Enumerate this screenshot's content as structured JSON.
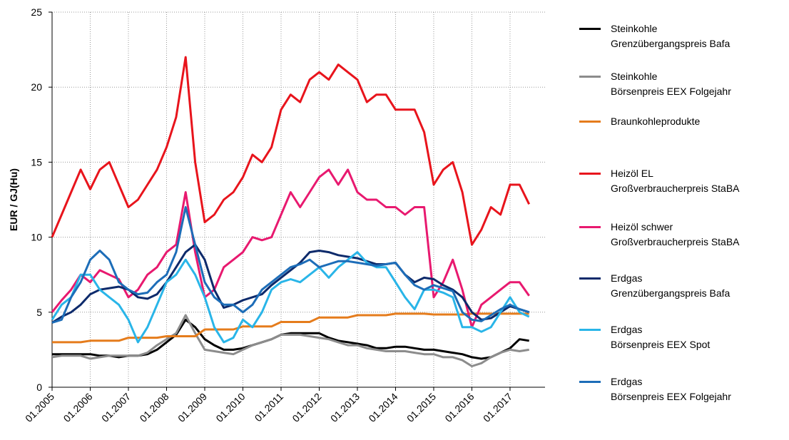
{
  "chart_data": {
    "type": "line",
    "y_label": "EUR / GJ(Hu)",
    "ylim": [
      0,
      25
    ],
    "yticks": [
      0,
      5,
      10,
      15,
      20,
      25
    ],
    "xlim": [
      "01.2005",
      "12.2017"
    ],
    "xticks": [
      "01.2005",
      "01.2006",
      "01.2007",
      "01.2008",
      "01.2009",
      "01.2010",
      "01.2011",
      "01.2012",
      "01.2013",
      "01.2014",
      "01.2015",
      "01.2016",
      "01.2017"
    ],
    "grid": true,
    "x": [
      "01.2005",
      "04.2005",
      "07.2005",
      "10.2005",
      "01.2006",
      "04.2006",
      "07.2006",
      "10.2006",
      "01.2007",
      "04.2007",
      "07.2007",
      "10.2007",
      "01.2008",
      "04.2008",
      "07.2008",
      "10.2008",
      "01.2009",
      "04.2009",
      "07.2009",
      "10.2009",
      "01.2010",
      "04.2010",
      "07.2010",
      "10.2010",
      "01.2011",
      "04.2011",
      "07.2011",
      "10.2011",
      "01.2012",
      "04.2012",
      "07.2012",
      "10.2012",
      "01.2013",
      "04.2013",
      "07.2013",
      "10.2013",
      "01.2014",
      "04.2014",
      "07.2014",
      "10.2014",
      "01.2015",
      "04.2015",
      "07.2015",
      "10.2015",
      "01.2016",
      "04.2016",
      "07.2016",
      "10.2016",
      "01.2017",
      "04.2017",
      "07.2017"
    ],
    "series": [
      {
        "name": "Steinkohle\nGrenzübergangspreis Bafa",
        "color": "#000000",
        "values": [
          2.2,
          2.2,
          2.2,
          2.2,
          2.2,
          2.1,
          2.1,
          2.0,
          2.1,
          2.1,
          2.2,
          2.5,
          3.0,
          3.5,
          4.5,
          4.0,
          3.2,
          2.8,
          2.5,
          2.5,
          2.6,
          2.8,
          3.0,
          3.2,
          3.5,
          3.6,
          3.6,
          3.6,
          3.6,
          3.3,
          3.1,
          3.0,
          2.9,
          2.8,
          2.6,
          2.6,
          2.7,
          2.7,
          2.6,
          2.5,
          2.5,
          2.4,
          2.3,
          2.2,
          2.0,
          1.9,
          2.0,
          2.3,
          2.6,
          3.2,
          3.1
        ]
      },
      {
        "name": "Steinkohle\nBörsenpreis EEX Folgejahr",
        "color": "#8c8c8c",
        "values": [
          2.0,
          2.1,
          2.1,
          2.1,
          1.9,
          2.0,
          2.1,
          2.1,
          2.1,
          2.1,
          2.3,
          2.8,
          3.2,
          3.6,
          4.8,
          3.6,
          2.5,
          2.4,
          2.3,
          2.2,
          2.5,
          2.8,
          3.0,
          3.2,
          3.5,
          3.5,
          3.5,
          3.4,
          3.3,
          3.2,
          3.0,
          2.8,
          2.8,
          2.6,
          2.5,
          2.4,
          2.4,
          2.4,
          2.3,
          2.2,
          2.2,
          2.0,
          2.0,
          1.8,
          1.4,
          1.6,
          2.0,
          2.3,
          2.5,
          2.4,
          2.5
        ]
      },
      {
        "name": "Braunkohleprodukte",
        "color": "#e57c1c",
        "values": [
          3.0,
          3.0,
          3.0,
          3.0,
          3.1,
          3.1,
          3.1,
          3.1,
          3.3,
          3.3,
          3.3,
          3.3,
          3.4,
          3.4,
          3.4,
          3.4,
          3.85,
          3.85,
          3.85,
          3.85,
          4.05,
          4.05,
          4.05,
          4.05,
          4.35,
          4.35,
          4.35,
          4.35,
          4.65,
          4.65,
          4.65,
          4.65,
          4.8,
          4.8,
          4.8,
          4.8,
          4.9,
          4.9,
          4.9,
          4.9,
          4.85,
          4.85,
          4.85,
          4.85,
          4.9,
          4.9,
          4.9,
          4.9,
          4.9,
          4.9,
          4.9
        ]
      },
      {
        "name": "Heizöl EL\nGroßverbraucherpreis StaBA",
        "color": "#e8141c",
        "values": [
          10.0,
          11.5,
          13.0,
          14.5,
          13.2,
          14.5,
          15.0,
          13.5,
          12.0,
          12.5,
          13.5,
          14.5,
          16.0,
          18.0,
          22.0,
          15.0,
          11.0,
          11.5,
          12.5,
          13.0,
          14.0,
          15.5,
          15.0,
          16.0,
          18.5,
          19.5,
          19.0,
          20.5,
          21.0,
          20.5,
          21.5,
          21.0,
          20.5,
          19.0,
          19.5,
          19.5,
          18.5,
          18.5,
          18.5,
          17.0,
          13.5,
          14.5,
          15.0,
          13.0,
          9.5,
          10.5,
          12.0,
          11.5,
          13.5,
          13.5,
          12.2
        ]
      },
      {
        "name": "Heizöl schwer\nGroßverbraucherpreis StaBA",
        "color": "#e8196f",
        "values": [
          5.0,
          5.8,
          6.5,
          7.5,
          7.0,
          7.8,
          7.5,
          7.2,
          6.0,
          6.5,
          7.5,
          8.0,
          9.0,
          9.5,
          13.0,
          9.0,
          6.0,
          6.5,
          8.0,
          8.5,
          9.0,
          10.0,
          9.8,
          10.0,
          11.5,
          13.0,
          12.0,
          13.0,
          14.0,
          14.5,
          13.5,
          14.5,
          13.0,
          12.5,
          12.5,
          12.0,
          12.0,
          11.5,
          12.0,
          12.0,
          6.0,
          7.0,
          8.5,
          6.5,
          4.0,
          5.5,
          6.0,
          6.5,
          7.0,
          7.0,
          6.1
        ]
      },
      {
        "name": "Erdgas\nGrenzübergangspreis Bafa",
        "color": "#0d2a6b",
        "values": [
          4.3,
          4.7,
          5.0,
          5.5,
          6.2,
          6.5,
          6.6,
          6.7,
          6.5,
          6.0,
          5.9,
          6.2,
          7.0,
          8.0,
          9.0,
          9.5,
          8.5,
          6.5,
          5.3,
          5.5,
          5.8,
          6.0,
          6.2,
          6.8,
          7.3,
          7.8,
          8.3,
          9.0,
          9.1,
          9.0,
          8.8,
          8.7,
          8.6,
          8.4,
          8.2,
          8.2,
          8.3,
          7.5,
          7.0,
          7.3,
          7.2,
          6.8,
          6.5,
          6.0,
          5.0,
          4.5,
          4.6,
          5.0,
          5.4,
          5.2,
          5.0
        ]
      },
      {
        "name": "Erdgas\nBörsenpreis EEX Spot",
        "color": "#29b5e8",
        "values": [
          4.5,
          5.5,
          6.0,
          7.5,
          7.5,
          6.5,
          6.0,
          5.5,
          4.5,
          3.0,
          4.0,
          5.5,
          7.0,
          7.5,
          8.5,
          7.5,
          6.0,
          4.0,
          3.0,
          3.3,
          4.5,
          4.0,
          5.0,
          6.5,
          7.0,
          7.2,
          7.0,
          7.5,
          8.0,
          7.3,
          8.0,
          8.5,
          9.0,
          8.3,
          8.0,
          8.0,
          7.0,
          6.0,
          5.2,
          6.5,
          6.5,
          6.3,
          6.0,
          4.0,
          4.0,
          3.7,
          4.0,
          5.0,
          6.0,
          5.0,
          4.7
        ]
      },
      {
        "name": "Erdgas\nBörsenpreis EEX Folgejahr",
        "color": "#1d6db8",
        "values": [
          4.3,
          4.5,
          6.0,
          7.0,
          8.5,
          9.1,
          8.5,
          7.0,
          6.5,
          6.2,
          6.3,
          7.0,
          7.5,
          9.0,
          12.0,
          9.5,
          7.0,
          6.0,
          5.5,
          5.5,
          5.0,
          5.5,
          6.5,
          7.0,
          7.5,
          8.0,
          8.2,
          8.5,
          8.0,
          8.2,
          8.4,
          8.4,
          8.3,
          8.2,
          8.1,
          8.2,
          8.3,
          7.5,
          6.8,
          6.5,
          6.8,
          6.6,
          6.4,
          5.0,
          4.5,
          4.4,
          4.8,
          5.2,
          5.5,
          5.2,
          5.0
        ]
      }
    ]
  }
}
